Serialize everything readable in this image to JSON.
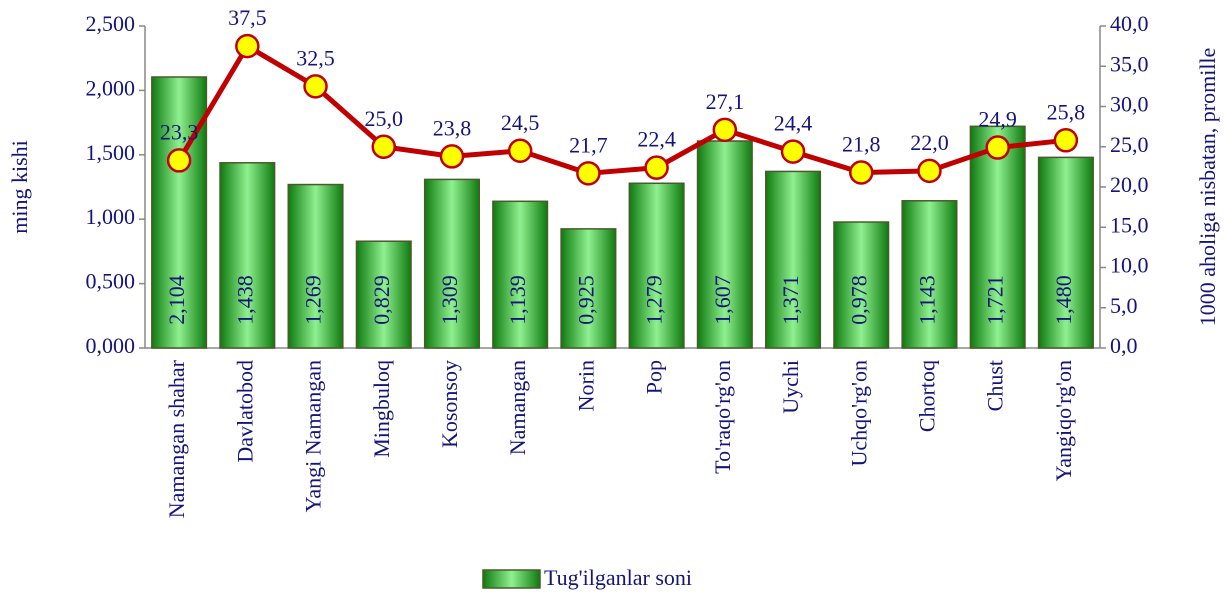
{
  "chart_data": {
    "type": "combo",
    "y_label": "ming kishi",
    "y2_label": "1000 aholiga nisbatan, promille",
    "categories": [
      "Namangan shahar",
      "Davlatobod",
      "Yangi Namangan",
      "Mingbuloq",
      "Kosonsoy",
      "Namangan",
      "Norin",
      "Pop",
      "To'raqo'rg'on",
      "Uychi",
      "Uchqo'rg'on",
      "Chortoq",
      "Chust",
      "Yangiqo'rg'on"
    ],
    "series": [
      {
        "name": "Tug'ilganlar soni",
        "type": "bar",
        "color": "#2eb82e",
        "values": [
          2.104,
          1.438,
          1.269,
          0.829,
          1.309,
          1.139,
          0.925,
          1.279,
          1.607,
          1.371,
          0.978,
          1.143,
          1.721,
          1.48
        ],
        "value_labels": [
          "2,104",
          "1,438",
          "1,269",
          "0,829",
          "1,309",
          "1,139",
          "0,925",
          "1,279",
          "1,607",
          "1,371",
          "0,978",
          "1,143",
          "1,721",
          "1,480"
        ]
      },
      {
        "type": "line",
        "axis": "y2",
        "color": "#c00000",
        "marker_color": "#ffff00",
        "values": [
          23.3,
          37.5,
          32.5,
          25.0,
          23.8,
          24.5,
          21.7,
          22.4,
          27.1,
          24.4,
          21.8,
          22.0,
          24.9,
          25.8
        ],
        "value_labels": [
          "23,3",
          "37,5",
          "32,5",
          "25,0",
          "23,8",
          "24,5",
          "21,7",
          "22,4",
          "27,1",
          "24,4",
          "21,8",
          "22,0",
          "24,9",
          "25,8"
        ]
      }
    ],
    "ylim": [
      0,
      2.5
    ],
    "yticks": [
      {
        "value": 0,
        "label": "0,000"
      },
      {
        "value": 0.5,
        "label": "0,500"
      },
      {
        "value": 1,
        "label": "1,000"
      },
      {
        "value": 1.5,
        "label": "1,500"
      },
      {
        "value": 2,
        "label": "2,000"
      },
      {
        "value": 2.5,
        "label": "2,500"
      }
    ],
    "y2lim": [
      0,
      40
    ],
    "y2ticks": [
      {
        "value": 0,
        "label": "0,0"
      },
      {
        "value": 5,
        "label": "5,0"
      },
      {
        "value": 10,
        "label": "10,0"
      },
      {
        "value": 15,
        "label": "15,0"
      },
      {
        "value": 20,
        "label": "20,0"
      },
      {
        "value": 25,
        "label": "25,0"
      },
      {
        "value": 30,
        "label": "30,0"
      },
      {
        "value": 35,
        "label": "35,0"
      },
      {
        "value": 40,
        "label": "40,0"
      }
    ],
    "legend": "bottom"
  }
}
